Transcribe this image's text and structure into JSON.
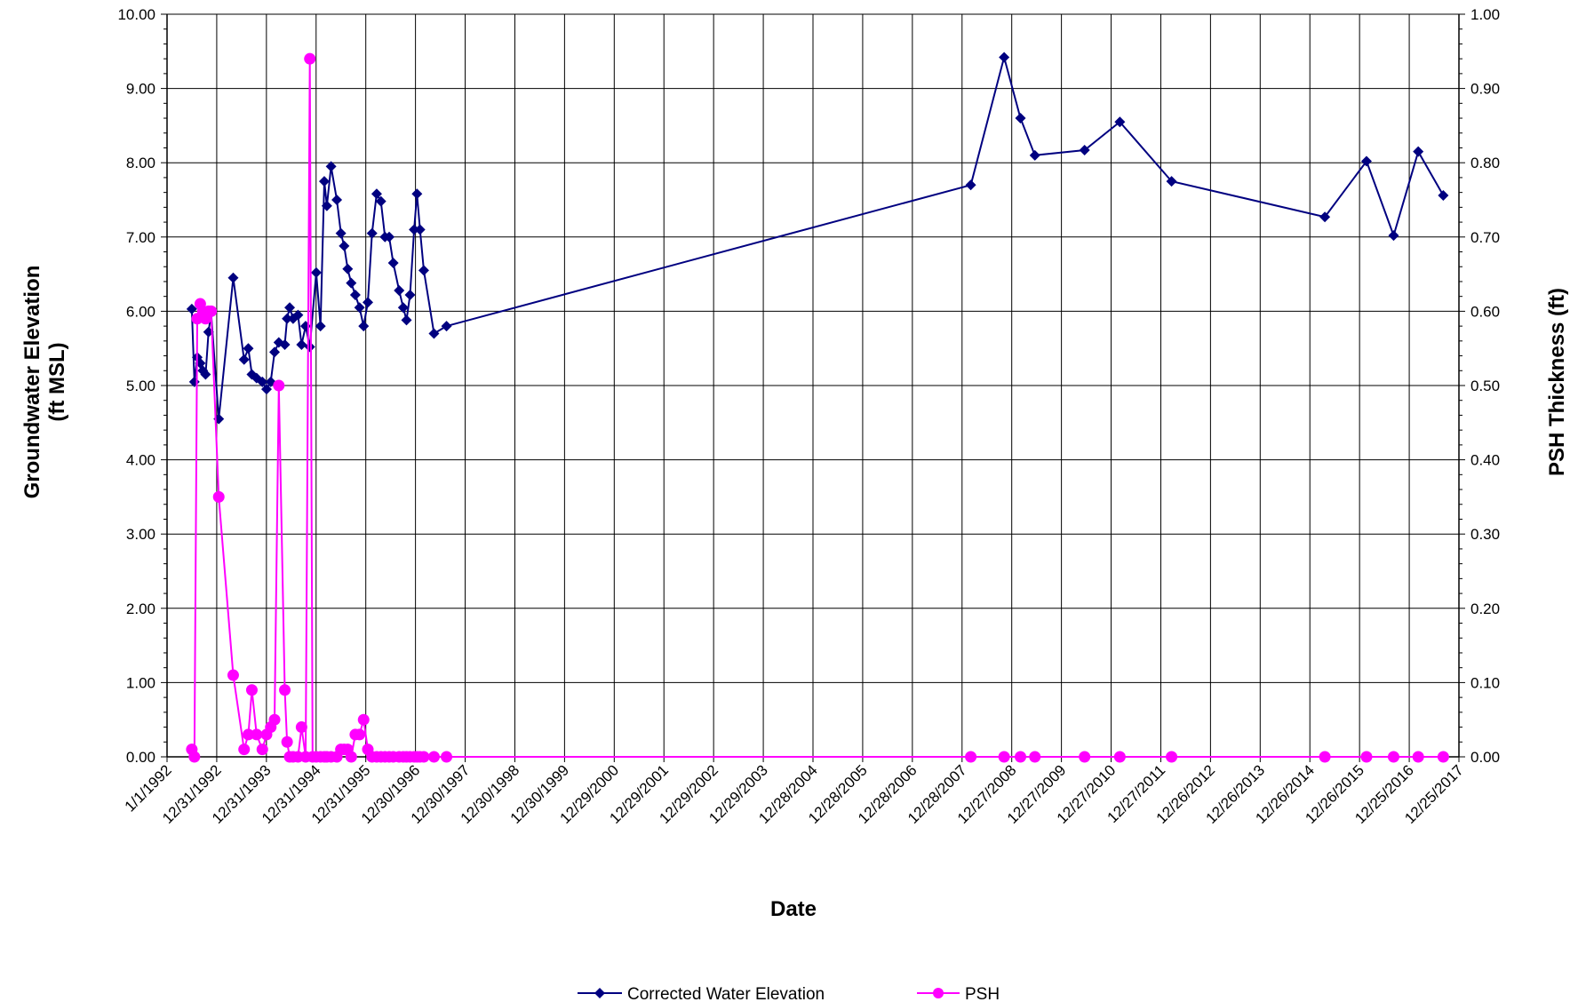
{
  "chart_data": {
    "type": "line",
    "xlabel": "Date",
    "ylabel_lines": [
      "Groundwater Elevation",
      "(ft MSL)"
    ],
    "y2label": "PSH Thickness (ft)",
    "grid": true,
    "legend_position": "bottom",
    "x_tick_labels": [
      "1/1/1992",
      "12/31/1992",
      "12/31/1993",
      "12/31/1994",
      "12/31/1995",
      "12/30/1996",
      "12/30/1997",
      "12/30/1998",
      "12/30/1999",
      "12/29/2000",
      "12/29/2001",
      "12/29/2002",
      "12/29/2003",
      "12/28/2004",
      "12/28/2005",
      "12/28/2006",
      "12/28/2007",
      "12/27/2008",
      "12/27/2009",
      "12/27/2010",
      "12/27/2011",
      "12/26/2012",
      "12/26/2013",
      "12/26/2014",
      "12/26/2015",
      "12/25/2016",
      "12/25/2017"
    ],
    "y_tick_labels": [
      "0.00",
      "1.00",
      "2.00",
      "3.00",
      "4.00",
      "5.00",
      "6.00",
      "7.00",
      "8.00",
      "9.00",
      "10.00"
    ],
    "y2_tick_labels": [
      "0.00",
      "0.10",
      "0.20",
      "0.30",
      "0.40",
      "0.50",
      "0.60",
      "0.70",
      "0.80",
      "0.90",
      "1.00"
    ],
    "ylim": [
      0,
      10
    ],
    "y2lim": [
      0,
      1
    ],
    "xlim": [
      "1992-01-01",
      "2017-12-25"
    ],
    "series": [
      {
        "name": "Corrected Water Elevation",
        "axis": "left",
        "color": "#000080",
        "marker": "diamond",
        "points": [
          [
            "1992-07-01",
            6.03
          ],
          [
            "1992-07-20",
            5.05
          ],
          [
            "1992-08-10",
            5.38
          ],
          [
            "1992-09-01",
            5.3
          ],
          [
            "1992-09-20",
            5.2
          ],
          [
            "1992-10-10",
            5.15
          ],
          [
            "1992-11-01",
            5.72
          ],
          [
            "1992-11-20",
            5.98
          ],
          [
            "1993-01-15",
            4.55
          ],
          [
            "1993-05-01",
            6.45
          ],
          [
            "1993-07-20",
            5.35
          ],
          [
            "1993-08-20",
            5.5
          ],
          [
            "1993-09-15",
            5.15
          ],
          [
            "1993-10-20",
            5.1
          ],
          [
            "1993-12-01",
            5.05
          ],
          [
            "1994-01-01",
            4.95
          ],
          [
            "1994-02-01",
            5.05
          ],
          [
            "1994-03-01",
            5.45
          ],
          [
            "1994-04-01",
            5.58
          ],
          [
            "1994-05-15",
            5.55
          ],
          [
            "1994-06-01",
            5.9
          ],
          [
            "1994-06-20",
            6.05
          ],
          [
            "1994-07-15",
            5.9
          ],
          [
            "1994-08-20",
            5.95
          ],
          [
            "1994-09-15",
            5.55
          ],
          [
            "1994-10-15",
            5.8
          ],
          [
            "1994-11-15",
            5.52
          ],
          [
            "1995-01-01",
            6.52
          ],
          [
            "1995-02-01",
            5.8
          ],
          [
            "1995-03-01",
            7.75
          ],
          [
            "1995-03-20",
            7.42
          ],
          [
            "1995-04-20",
            7.95
          ],
          [
            "1995-06-01",
            7.5
          ],
          [
            "1995-07-01",
            7.05
          ],
          [
            "1995-07-25",
            6.88
          ],
          [
            "1995-08-20",
            6.57
          ],
          [
            "1995-09-15",
            6.38
          ],
          [
            "1995-10-15",
            6.22
          ],
          [
            "1995-11-15",
            6.05
          ],
          [
            "1995-12-15",
            5.8
          ],
          [
            "1996-01-15",
            6.12
          ],
          [
            "1996-02-15",
            7.05
          ],
          [
            "1996-03-20",
            7.58
          ],
          [
            "1996-04-20",
            7.48
          ],
          [
            "1996-05-20",
            7.0
          ],
          [
            "1996-06-20",
            7.0
          ],
          [
            "1996-07-20",
            6.65
          ],
          [
            "1996-09-01",
            6.28
          ],
          [
            "1996-10-01",
            6.05
          ],
          [
            "1996-10-25",
            5.88
          ],
          [
            "1996-11-20",
            6.22
          ],
          [
            "1996-12-20",
            7.1
          ],
          [
            "1997-01-10",
            7.58
          ],
          [
            "1997-02-01",
            7.1
          ],
          [
            "1997-03-01",
            6.55
          ],
          [
            "1997-05-15",
            5.7
          ],
          [
            "1997-08-15",
            5.8
          ],
          [
            "2008-03-01",
            7.7
          ],
          [
            "2008-11-01",
            9.42
          ],
          [
            "2009-03-01",
            8.6
          ],
          [
            "2009-06-15",
            8.1
          ],
          [
            "2010-06-15",
            8.17
          ],
          [
            "2011-03-01",
            8.55
          ],
          [
            "2012-03-15",
            7.75
          ],
          [
            "2015-04-15",
            7.27
          ],
          [
            "2016-02-15",
            8.02
          ],
          [
            "2016-09-01",
            7.02
          ],
          [
            "2017-03-01",
            8.15
          ],
          [
            "2017-09-01",
            7.56
          ]
        ]
      },
      {
        "name": "PSH",
        "axis": "right",
        "color": "#ff00ff",
        "marker": "circle",
        "points": [
          [
            "1992-07-01",
            0.01
          ],
          [
            "1992-07-20",
            0.0
          ],
          [
            "1992-08-10",
            0.59
          ],
          [
            "1992-09-01",
            0.61
          ],
          [
            "1992-09-20",
            0.6
          ],
          [
            "1992-10-10",
            0.59
          ],
          [
            "1992-11-01",
            0.6
          ],
          [
            "1992-11-20",
            0.6
          ],
          [
            "1993-01-15",
            0.35
          ],
          [
            "1993-05-01",
            0.11
          ],
          [
            "1993-07-20",
            0.01
          ],
          [
            "1993-08-20",
            0.03
          ],
          [
            "1993-09-15",
            0.09
          ],
          [
            "1993-10-20",
            0.03
          ],
          [
            "1993-12-01",
            0.01
          ],
          [
            "1994-01-01",
            0.03
          ],
          [
            "1994-02-01",
            0.04
          ],
          [
            "1994-03-01",
            0.05
          ],
          [
            "1994-04-01",
            0.5
          ],
          [
            "1994-05-15",
            0.09
          ],
          [
            "1994-06-01",
            0.02
          ],
          [
            "1994-06-20",
            0.0
          ],
          [
            "1994-07-15",
            0.0
          ],
          [
            "1994-08-20",
            0.0
          ],
          [
            "1994-09-15",
            0.04
          ],
          [
            "1994-10-15",
            0.0
          ],
          [
            "1994-11-15",
            0.94
          ],
          [
            "1994-12-05",
            0.0
          ],
          [
            "1995-01-01",
            0.0
          ],
          [
            "1995-02-01",
            0.0
          ],
          [
            "1995-03-01",
            0.0
          ],
          [
            "1995-03-20",
            0.0
          ],
          [
            "1995-04-20",
            0.0
          ],
          [
            "1995-06-01",
            0.0
          ],
          [
            "1995-07-01",
            0.01
          ],
          [
            "1995-07-25",
            0.01
          ],
          [
            "1995-08-20",
            0.01
          ],
          [
            "1995-09-15",
            0.0
          ],
          [
            "1995-10-15",
            0.03
          ],
          [
            "1995-11-15",
            0.03
          ],
          [
            "1995-12-15",
            0.05
          ],
          [
            "1996-01-15",
            0.01
          ],
          [
            "1996-02-15",
            0.0
          ],
          [
            "1996-03-20",
            0.0
          ],
          [
            "1996-04-20",
            0.0
          ],
          [
            "1996-05-20",
            0.0
          ],
          [
            "1996-06-20",
            0.0
          ],
          [
            "1996-07-20",
            0.0
          ],
          [
            "1996-09-01",
            0.0
          ],
          [
            "1996-10-01",
            0.0
          ],
          [
            "1996-10-25",
            0.0
          ],
          [
            "1996-11-20",
            0.0
          ],
          [
            "1996-12-20",
            0.0
          ],
          [
            "1997-01-10",
            0.0
          ],
          [
            "1997-02-01",
            0.0
          ],
          [
            "1997-03-01",
            0.0
          ],
          [
            "1997-05-15",
            0.0
          ],
          [
            "1997-08-15",
            0.0
          ],
          [
            "2008-03-01",
            0.0
          ],
          [
            "2008-11-01",
            0.0
          ],
          [
            "2009-03-01",
            0.0
          ],
          [
            "2009-06-15",
            0.0
          ],
          [
            "2010-06-15",
            0.0
          ],
          [
            "2011-03-01",
            0.0
          ],
          [
            "2012-03-15",
            0.0
          ],
          [
            "2015-04-15",
            0.0
          ],
          [
            "2016-02-15",
            0.0
          ],
          [
            "2016-09-01",
            0.0
          ],
          [
            "2017-03-01",
            0.0
          ],
          [
            "2017-09-01",
            0.0
          ]
        ]
      }
    ]
  }
}
